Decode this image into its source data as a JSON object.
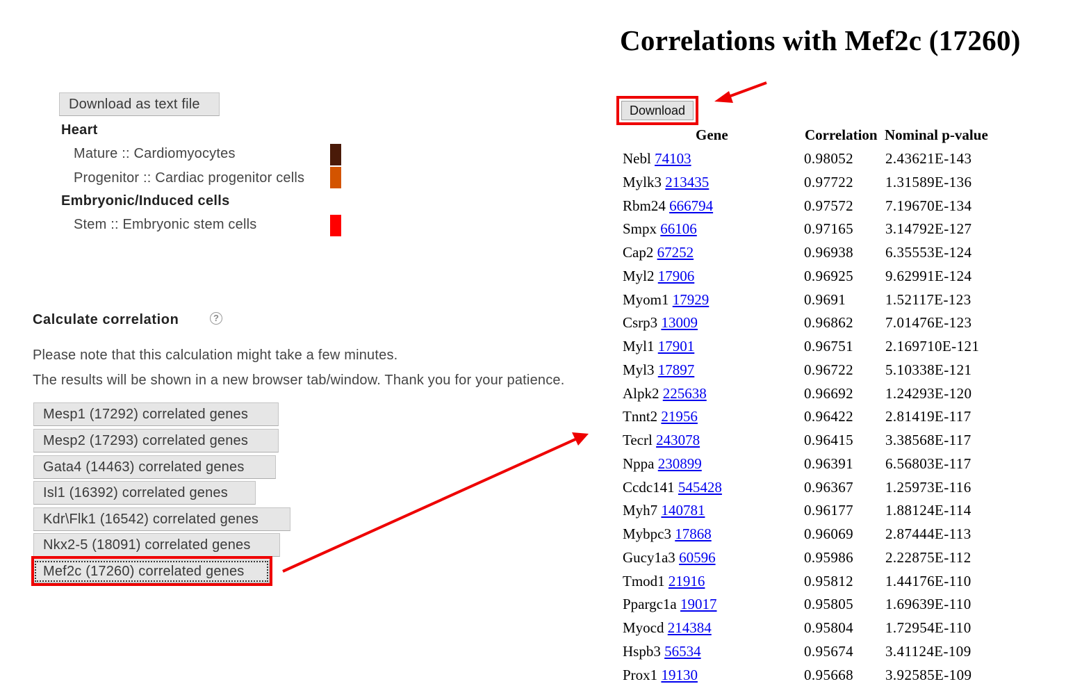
{
  "left": {
    "download_text_button": "Download as text file",
    "groups": [
      {
        "title": "Heart",
        "items": [
          {
            "label": "Mature :: Cardiomyocytes",
            "color": "#4a1a08"
          },
          {
            "label": "Progenitor :: Cardiac progenitor cells",
            "color": "#d35400"
          }
        ]
      },
      {
        "title": "Embryonic/Induced cells",
        "items": [
          {
            "label": "Stem :: Embryonic stem cells",
            "color": "#ff0000"
          }
        ]
      }
    ],
    "calc_title": "Calculate correlation",
    "help_icon": "?",
    "note_line1": "Please note that this calculation might take a few minutes.",
    "note_line2": "The results will be shown in a new browser tab/window. Thank you for your patience.",
    "correlation_buttons": [
      "Mesp1 (17292) correlated genes",
      "Mesp2 (17293) correlated genes",
      "Gata4 (14463) correlated genes",
      "Isl1 (16392) correlated genes",
      "Kdr\\Flk1 (16542) correlated genes",
      "Nkx2-5 (18091) correlated genes",
      "Mef2c (17260) correlated genes"
    ]
  },
  "right": {
    "title": "Correlations with Mef2c (17260)",
    "download_button": "Download",
    "columns": [
      "Gene",
      "Correlation",
      "Nominal p-value"
    ],
    "rows": [
      {
        "gene": "Nebl",
        "id": "74103",
        "corr": "0.98052",
        "pval": "2.43621E-143"
      },
      {
        "gene": "Mylk3",
        "id": "213435",
        "corr": "0.97722",
        "pval": "1.31589E-136"
      },
      {
        "gene": "Rbm24",
        "id": "666794",
        "corr": "0.97572",
        "pval": "7.19670E-134"
      },
      {
        "gene": "Smpx",
        "id": "66106",
        "corr": "0.97165",
        "pval": "3.14792E-127"
      },
      {
        "gene": "Cap2",
        "id": "67252",
        "corr": "0.96938",
        "pval": "6.35553E-124"
      },
      {
        "gene": "Myl2",
        "id": "17906",
        "corr": "0.96925",
        "pval": "9.62991E-124"
      },
      {
        "gene": "Myom1",
        "id": "17929",
        "corr": "0.9691",
        "pval": "1.52117E-123"
      },
      {
        "gene": "Csrp3",
        "id": "13009",
        "corr": "0.96862",
        "pval": "7.01476E-123"
      },
      {
        "gene": "Myl1",
        "id": "17901",
        "corr": "0.96751",
        "pval": "2.169710E-121"
      },
      {
        "gene": "Myl3",
        "id": "17897",
        "corr": "0.96722",
        "pval": "5.10338E-121"
      },
      {
        "gene": "Alpk2",
        "id": "225638",
        "corr": "0.96692",
        "pval": "1.24293E-120"
      },
      {
        "gene": "Tnnt2",
        "id": "21956",
        "corr": "0.96422",
        "pval": "2.81419E-117"
      },
      {
        "gene": "Tecrl",
        "id": "243078",
        "corr": "0.96415",
        "pval": "3.38568E-117"
      },
      {
        "gene": "Nppa",
        "id": "230899",
        "corr": "0.96391",
        "pval": "6.56803E-117"
      },
      {
        "gene": "Ccdc141",
        "id": "545428",
        "corr": "0.96367",
        "pval": "1.25973E-116"
      },
      {
        "gene": "Myh7",
        "id": "140781",
        "corr": "0.96177",
        "pval": "1.88124E-114"
      },
      {
        "gene": "Mybpc3",
        "id": "17868",
        "corr": "0.96069",
        "pval": "2.87444E-113"
      },
      {
        "gene": "Gucy1a3",
        "id": "60596",
        "corr": "0.95986",
        "pval": "2.22875E-112"
      },
      {
        "gene": "Tmod1",
        "id": "21916",
        "corr": "0.95812",
        "pval": "1.44176E-110"
      },
      {
        "gene": "Ppargc1a",
        "id": "19017",
        "corr": "0.95805",
        "pval": "1.69639E-110"
      },
      {
        "gene": "Myocd",
        "id": "214384",
        "corr": "0.95804",
        "pval": "1.72954E-110"
      },
      {
        "gene": "Hspb3",
        "id": "56534",
        "corr": "0.95674",
        "pval": "3.41124E-109"
      },
      {
        "gene": "Prox1",
        "id": "19130",
        "corr": "0.95668",
        "pval": "3.92585E-109"
      }
    ]
  },
  "annotations": {
    "highlight_color": "#ee0000"
  }
}
